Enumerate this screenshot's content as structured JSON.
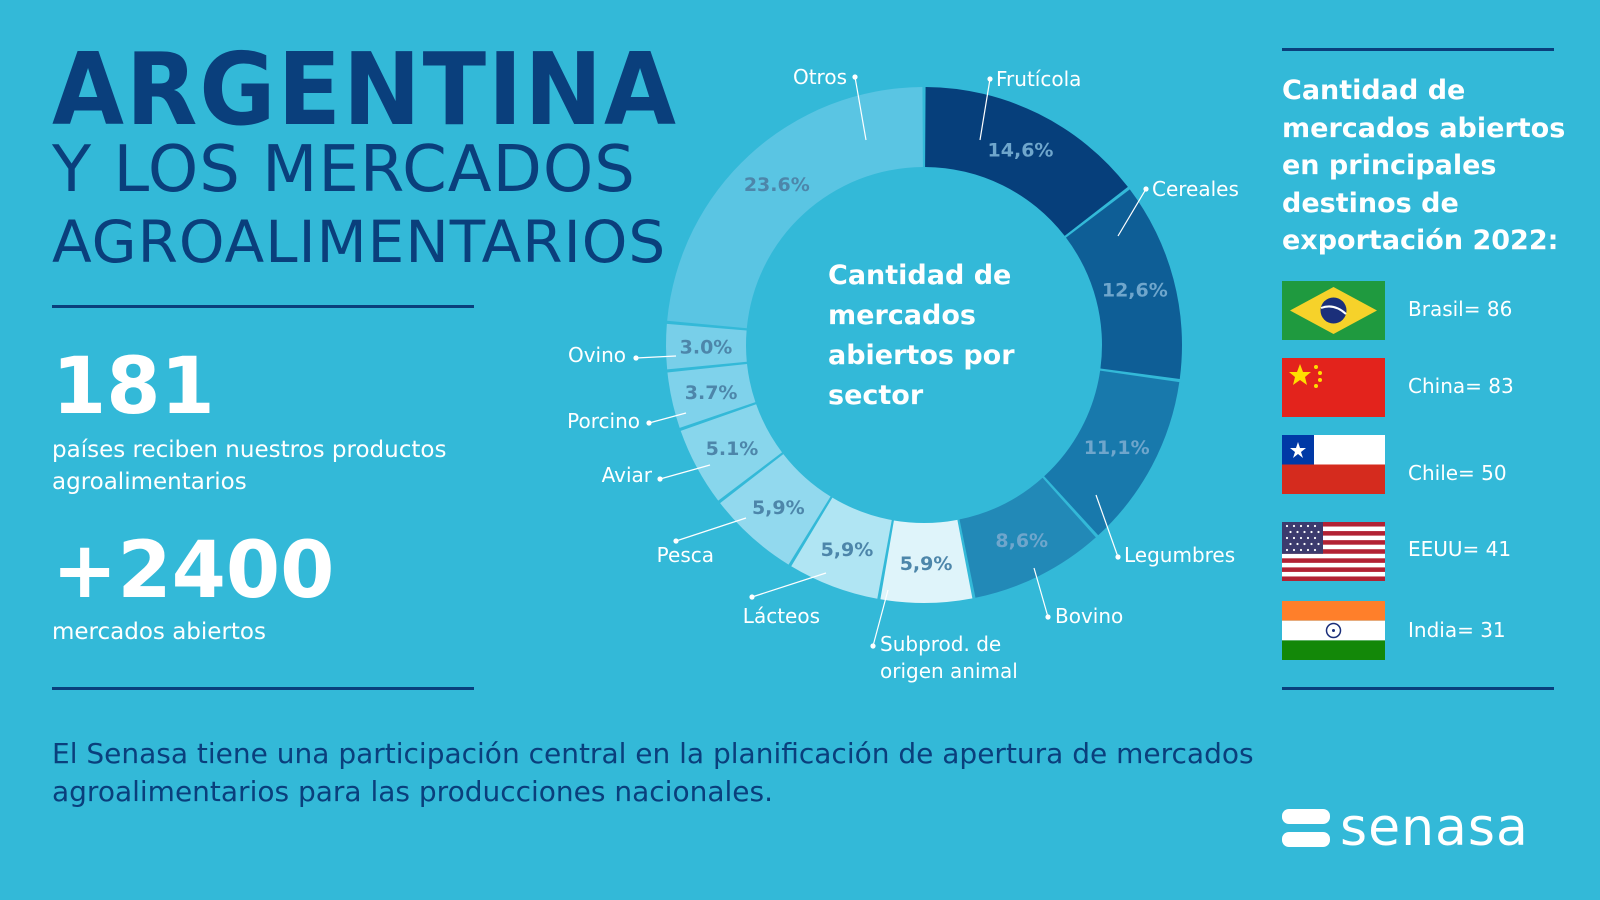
{
  "title": {
    "line1": "ARGENTINA",
    "line2": "Y LOS MERCADOS",
    "line3": "AGROALIMENTARIOS"
  },
  "stats": [
    {
      "value": "181",
      "description": "países reciben nuestros productos agroalimentarios"
    },
    {
      "value": "+2400",
      "description": "mercados abiertos"
    }
  ],
  "footer": "El Senasa tiene una participación central en la planificación de apertura de mercados agroalimentarios para las producciones nacionales.",
  "destinations": {
    "title": "Cantidad de mercados abiertos en principales destinos de exportación 2022:",
    "items": [
      {
        "label": "Brasil= 86",
        "country": "Brasil",
        "value": 86
      },
      {
        "label": "China= 83",
        "country": "China",
        "value": 83
      },
      {
        "label": "Chile= 50",
        "country": "Chile",
        "value": 50
      },
      {
        "label": "EEUU= 41",
        "country": "EEUU",
        "value": 41
      },
      {
        "label": "India= 31",
        "country": "India",
        "value": 31
      }
    ]
  },
  "logo": {
    "text": "senasa"
  },
  "chart_data": {
    "type": "pie",
    "variant": "donut",
    "title": "Cantidad de mercados abiertos por sector",
    "categories": [
      "Frutícola",
      "Cereales",
      "Legumbres",
      "Bovino",
      "Subprod. de origen animal",
      "Lácteos",
      "Pesca",
      "Aviar",
      "Porcino",
      "Ovino",
      "Otros"
    ],
    "values": [
      14.6,
      12.6,
      11.1,
      8.6,
      5.9,
      5.9,
      5.9,
      5.1,
      3.7,
      3.0,
      23.6
    ],
    "value_labels": [
      "14,6%",
      "12,6%",
      "11,1%",
      "8,6%",
      "5,9%",
      "5,9%",
      "5,9%",
      "5.1%",
      "3.7%",
      "3.0%",
      "23.6%"
    ],
    "colors": [
      "#063f7b",
      "#0e5e96",
      "#1879ac",
      "#2289b7",
      "#dff4fa",
      "#b0e5f3",
      "#92d9ee",
      "#88d6ec",
      "#7fd2eb",
      "#78cfe9",
      "#5ac5e3"
    ],
    "label_color": "#4d86aa",
    "start_angle_deg": 0,
    "direction": "clockwise"
  }
}
